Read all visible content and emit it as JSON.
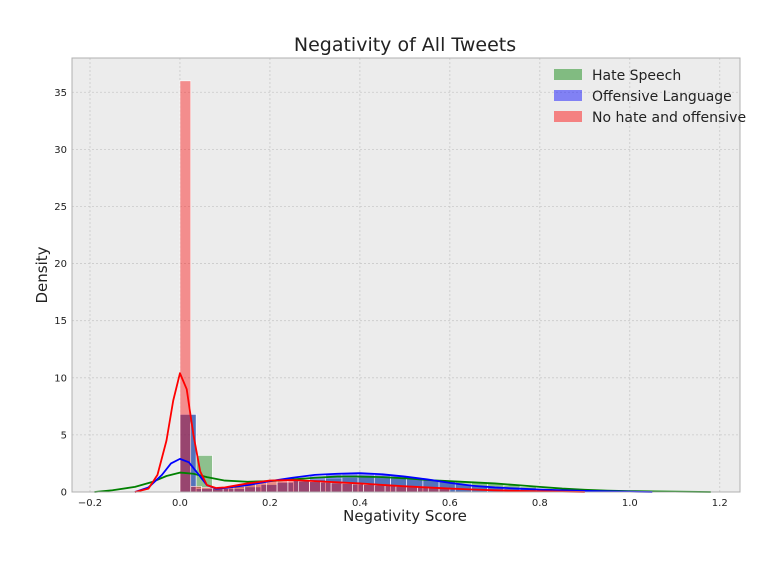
{
  "chart_data": {
    "type": "histogram_kde",
    "title": "Negativity of All Tweets",
    "xlabel": "Negativity Score",
    "ylabel": "Density",
    "xlim": [
      -0.24,
      1.245
    ],
    "ylim": [
      0,
      38
    ],
    "x_ticks": [
      -0.2,
      0.0,
      0.2,
      0.4,
      0.6,
      0.8,
      1.0,
      1.2
    ],
    "x_tick_labels": [
      "−0.2",
      "0.0",
      "0.2",
      "0.4",
      "0.6",
      "0.8",
      "1.0",
      "1.2"
    ],
    "y_ticks": [
      0,
      5,
      10,
      15,
      20,
      25,
      30,
      35
    ],
    "y_tick_labels": [
      "0",
      "5",
      "10",
      "15",
      "20",
      "25",
      "30",
      "35"
    ],
    "grid": true,
    "legend_position": "top-right",
    "series": [
      {
        "name": "Hate Speech",
        "color": "#008000",
        "bin_width": 0.036,
        "bins": [
          {
            "x": 0.0,
            "y": 6.8
          },
          {
            "x": 0.036,
            "y": 3.2
          },
          {
            "x": 0.072,
            "y": 0.35
          },
          {
            "x": 0.108,
            "y": 0.45
          },
          {
            "x": 0.144,
            "y": 0.6
          },
          {
            "x": 0.18,
            "y": 0.75
          },
          {
            "x": 0.216,
            "y": 0.9
          },
          {
            "x": 0.252,
            "y": 1.0
          },
          {
            "x": 0.288,
            "y": 1.1
          },
          {
            "x": 0.324,
            "y": 1.2
          },
          {
            "x": 0.36,
            "y": 1.25
          },
          {
            "x": 0.396,
            "y": 1.3
          },
          {
            "x": 0.432,
            "y": 1.25
          },
          {
            "x": 0.468,
            "y": 1.2
          },
          {
            "x": 0.504,
            "y": 1.15
          },
          {
            "x": 0.54,
            "y": 1.05
          },
          {
            "x": 0.576,
            "y": 1.0
          },
          {
            "x": 0.612,
            "y": 0.95
          },
          {
            "x": 0.648,
            "y": 0.85
          },
          {
            "x": 0.684,
            "y": 0.75
          },
          {
            "x": 0.72,
            "y": 0.6
          },
          {
            "x": 0.756,
            "y": 0.45
          },
          {
            "x": 0.792,
            "y": 0.3
          },
          {
            "x": 0.828,
            "y": 0.2
          },
          {
            "x": 0.864,
            "y": 0.15
          },
          {
            "x": 0.9,
            "y": 0.1
          }
        ],
        "kde": [
          [
            -0.19,
            0.0
          ],
          [
            -0.15,
            0.15
          ],
          [
            -0.1,
            0.45
          ],
          [
            -0.06,
            0.9
          ],
          [
            -0.03,
            1.4
          ],
          [
            0.0,
            1.7
          ],
          [
            0.03,
            1.6
          ],
          [
            0.06,
            1.3
          ],
          [
            0.1,
            1.0
          ],
          [
            0.15,
            0.9
          ],
          [
            0.2,
            0.95
          ],
          [
            0.25,
            1.1
          ],
          [
            0.3,
            1.25
          ],
          [
            0.35,
            1.35
          ],
          [
            0.4,
            1.35
          ],
          [
            0.45,
            1.3
          ],
          [
            0.5,
            1.2
          ],
          [
            0.55,
            1.05
          ],
          [
            0.6,
            0.95
          ],
          [
            0.65,
            0.85
          ],
          [
            0.7,
            0.75
          ],
          [
            0.75,
            0.6
          ],
          [
            0.8,
            0.45
          ],
          [
            0.85,
            0.3
          ],
          [
            0.9,
            0.2
          ],
          [
            0.95,
            0.12
          ],
          [
            1.0,
            0.08
          ],
          [
            1.05,
            0.05
          ],
          [
            1.1,
            0.03
          ],
          [
            1.18,
            0.0
          ]
        ]
      },
      {
        "name": "Offensive Language",
        "color": "#0000ff",
        "bin_width": 0.036,
        "bins": [
          {
            "x": 0.0,
            "y": 6.8
          },
          {
            "x": 0.036,
            "y": 0.3
          },
          {
            "x": 0.072,
            "y": 0.3
          },
          {
            "x": 0.108,
            "y": 0.3
          },
          {
            "x": 0.144,
            "y": 0.45
          },
          {
            "x": 0.18,
            "y": 0.65
          },
          {
            "x": 0.216,
            "y": 0.85
          },
          {
            "x": 0.252,
            "y": 1.0
          },
          {
            "x": 0.288,
            "y": 1.4
          },
          {
            "x": 0.324,
            "y": 1.55
          },
          {
            "x": 0.36,
            "y": 1.6
          },
          {
            "x": 0.396,
            "y": 1.6
          },
          {
            "x": 0.432,
            "y": 1.55
          },
          {
            "x": 0.468,
            "y": 1.4
          },
          {
            "x": 0.504,
            "y": 1.25
          },
          {
            "x": 0.54,
            "y": 1.1
          },
          {
            "x": 0.576,
            "y": 0.95
          },
          {
            "x": 0.612,
            "y": 0.7
          },
          {
            "x": 0.648,
            "y": 0.5
          },
          {
            "x": 0.684,
            "y": 0.4
          },
          {
            "x": 0.72,
            "y": 0.3
          },
          {
            "x": 0.756,
            "y": 0.25
          },
          {
            "x": 0.792,
            "y": 0.2
          },
          {
            "x": 0.828,
            "y": 0.15
          },
          {
            "x": 0.864,
            "y": 0.1
          }
        ],
        "kde": [
          [
            -0.1,
            0.0
          ],
          [
            -0.07,
            0.4
          ],
          [
            -0.04,
            1.5
          ],
          [
            -0.02,
            2.5
          ],
          [
            0.0,
            2.9
          ],
          [
            0.02,
            2.6
          ],
          [
            0.04,
            1.6
          ],
          [
            0.06,
            0.6
          ],
          [
            0.08,
            0.3
          ],
          [
            0.1,
            0.35
          ],
          [
            0.15,
            0.6
          ],
          [
            0.2,
            0.95
          ],
          [
            0.25,
            1.25
          ],
          [
            0.3,
            1.5
          ],
          [
            0.35,
            1.6
          ],
          [
            0.4,
            1.65
          ],
          [
            0.45,
            1.55
          ],
          [
            0.5,
            1.35
          ],
          [
            0.55,
            1.1
          ],
          [
            0.6,
            0.8
          ],
          [
            0.65,
            0.55
          ],
          [
            0.7,
            0.4
          ],
          [
            0.75,
            0.3
          ],
          [
            0.8,
            0.22
          ],
          [
            0.85,
            0.15
          ],
          [
            0.9,
            0.1
          ],
          [
            0.95,
            0.06
          ],
          [
            1.0,
            0.03
          ],
          [
            1.05,
            0.0
          ]
        ]
      },
      {
        "name": "No hate and offensive",
        "color": "#ff0000",
        "bin_width": 0.024,
        "bins": [
          {
            "x": 0.0,
            "y": 36.0
          },
          {
            "x": 0.024,
            "y": 0.5
          },
          {
            "x": 0.048,
            "y": 0.4
          },
          {
            "x": 0.072,
            "y": 0.4
          },
          {
            "x": 0.096,
            "y": 0.5
          },
          {
            "x": 0.12,
            "y": 0.6
          },
          {
            "x": 0.144,
            "y": 0.75
          },
          {
            "x": 0.168,
            "y": 0.85
          },
          {
            "x": 0.192,
            "y": 0.95
          },
          {
            "x": 0.216,
            "y": 1.0
          },
          {
            "x": 0.24,
            "y": 1.0
          },
          {
            "x": 0.264,
            "y": 0.95
          },
          {
            "x": 0.288,
            "y": 0.9
          },
          {
            "x": 0.312,
            "y": 0.85
          },
          {
            "x": 0.336,
            "y": 0.8
          },
          {
            "x": 0.36,
            "y": 0.75
          },
          {
            "x": 0.384,
            "y": 0.7
          },
          {
            "x": 0.408,
            "y": 0.65
          },
          {
            "x": 0.432,
            "y": 0.6
          },
          {
            "x": 0.456,
            "y": 0.55
          },
          {
            "x": 0.48,
            "y": 0.5
          },
          {
            "x": 0.504,
            "y": 0.45
          },
          {
            "x": 0.528,
            "y": 0.4
          },
          {
            "x": 0.552,
            "y": 0.35
          },
          {
            "x": 0.576,
            "y": 0.3
          }
        ],
        "kde": [
          [
            -0.1,
            0.0
          ],
          [
            -0.07,
            0.3
          ],
          [
            -0.05,
            1.5
          ],
          [
            -0.03,
            4.5
          ],
          [
            -0.015,
            8.0
          ],
          [
            0.0,
            10.4
          ],
          [
            0.015,
            9.0
          ],
          [
            0.03,
            5.0
          ],
          [
            0.045,
            1.8
          ],
          [
            0.06,
            0.6
          ],
          [
            0.08,
            0.35
          ],
          [
            0.1,
            0.4
          ],
          [
            0.15,
            0.75
          ],
          [
            0.2,
            1.0
          ],
          [
            0.25,
            1.05
          ],
          [
            0.3,
            0.95
          ],
          [
            0.35,
            0.85
          ],
          [
            0.4,
            0.75
          ],
          [
            0.45,
            0.62
          ],
          [
            0.5,
            0.5
          ],
          [
            0.55,
            0.4
          ],
          [
            0.6,
            0.3
          ],
          [
            0.65,
            0.22
          ],
          [
            0.7,
            0.15
          ],
          [
            0.75,
            0.1
          ],
          [
            0.8,
            0.06
          ],
          [
            0.85,
            0.03
          ],
          [
            0.9,
            0.0
          ]
        ]
      }
    ]
  }
}
